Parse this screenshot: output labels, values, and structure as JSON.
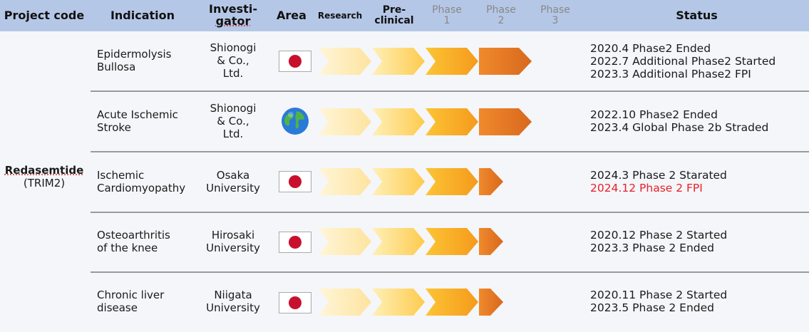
{
  "header": {
    "project_code": "Project code",
    "indication": "Indication",
    "investigator_1": "Investi-",
    "investigator_2": "gator",
    "area": "Area",
    "research": "Research",
    "preclinical_1": "Pre-",
    "preclinical_2": "clinical",
    "phase1_1": "Phase",
    "phase1_2": "1",
    "phase2_1": "Phase",
    "phase2_2": "2",
    "phase3_1": "Phase",
    "phase3_2": "3",
    "status": "Status"
  },
  "project": {
    "name": "Redasemtide",
    "code": "(TRIM2)"
  },
  "colors": {
    "header_bg": "#b5c7e6",
    "arrow_research": "#fde9b4",
    "arrow_preclinical": "#fdd66e",
    "arrow_phase1": "#f9a81e",
    "arrow_phase2": "#e97a26",
    "status_highlight": "#e8202a"
  },
  "rows": [
    {
      "indication": "Epidermolysis\nBullosa",
      "investigator": "Shionogi\n& Co.,\nLtd.",
      "area_icon": "japan-flag-icon",
      "stage_reached": "Phase 2 (complete)",
      "status": [
        "2020.4 Phase2  Ended",
        "2022.7 Additional Phase2 Started",
        "2023.3 Additional Phase2 FPI"
      ]
    },
    {
      "indication": "Acute Ischemic\nStroke",
      "investigator": "Shionogi\n& Co.,\nLtd.",
      "area_icon": "globe-icon",
      "stage_reached": "Phase 2 (complete)",
      "status": [
        "2022.10 Phase2 Ended",
        "2023.4 Global Phase 2b Straded"
      ]
    },
    {
      "indication": "Ischemic\nCardiomyopathy",
      "investigator": "Osaka\nUniversity",
      "area_icon": "japan-flag-icon",
      "stage_reached": "Phase 2 (started)",
      "status": [
        "2024.3 Phase 2 Starated"
      ],
      "status_highlight": "2024.12 Phase 2 FPI"
    },
    {
      "indication": "Osteoarthritis\nof the knee",
      "investigator": "Hirosaki\nUniversity",
      "area_icon": "japan-flag-icon",
      "stage_reached": "Phase 2 (started)",
      "status": [
        "2020.12 Phase 2 Started",
        "2023.3 Phase 2 Ended"
      ]
    },
    {
      "indication": "Chronic liver\ndisease",
      "investigator": "Niigata\nUniversity",
      "area_icon": "japan-flag-icon",
      "stage_reached": "Phase 2 (started)",
      "status": [
        "2020.11 Phase 2 Started",
        "2023.5 Phase 2 Ended"
      ]
    }
  ]
}
